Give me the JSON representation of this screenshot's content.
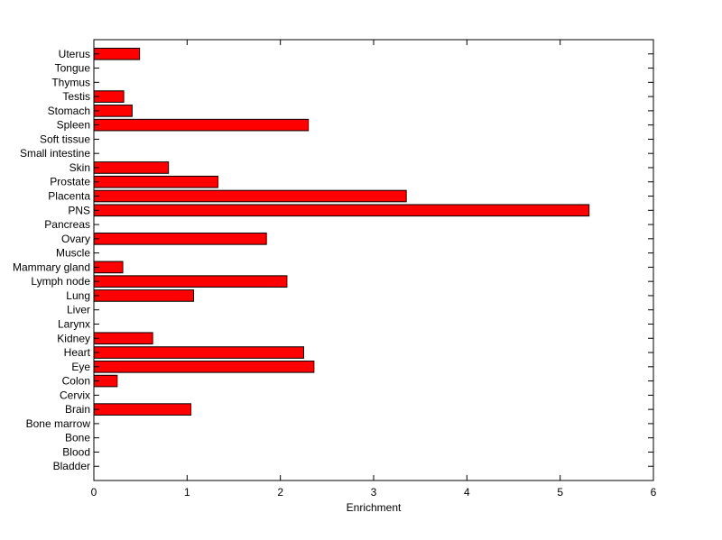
{
  "chart_data": {
    "type": "bar",
    "orientation": "horizontal",
    "title": "",
    "xlabel": "Enrichment",
    "ylabel": "",
    "xlim": [
      0,
      6
    ],
    "xticks": [
      0,
      1,
      2,
      3,
      4,
      5,
      6
    ],
    "grid": false,
    "bar_color": "#ff0000",
    "bar_edge_color": "#000000",
    "categories": [
      "Uterus",
      "Tongue",
      "Thymus",
      "Testis",
      "Stomach",
      "Spleen",
      "Soft tissue",
      "Small intestine",
      "Skin",
      "Prostate",
      "Placenta",
      "PNS",
      "Pancreas",
      "Ovary",
      "Muscle",
      "Mammary gland",
      "Lymph node",
      "Lung",
      "Liver",
      "Larynx",
      "Kidney",
      "Heart",
      "Eye",
      "Colon",
      "Cervix",
      "Brain",
      "Bone marrow",
      "Bone",
      "Blood",
      "Bladder"
    ],
    "values": [
      0.49,
      0,
      0,
      0.32,
      0.41,
      2.3,
      0,
      0,
      0.8,
      1.33,
      3.35,
      5.31,
      0,
      1.85,
      0,
      0.31,
      2.07,
      1.07,
      0,
      0,
      0.63,
      2.25,
      2.36,
      0.25,
      0,
      1.04,
      0,
      0,
      0,
      0
    ]
  }
}
